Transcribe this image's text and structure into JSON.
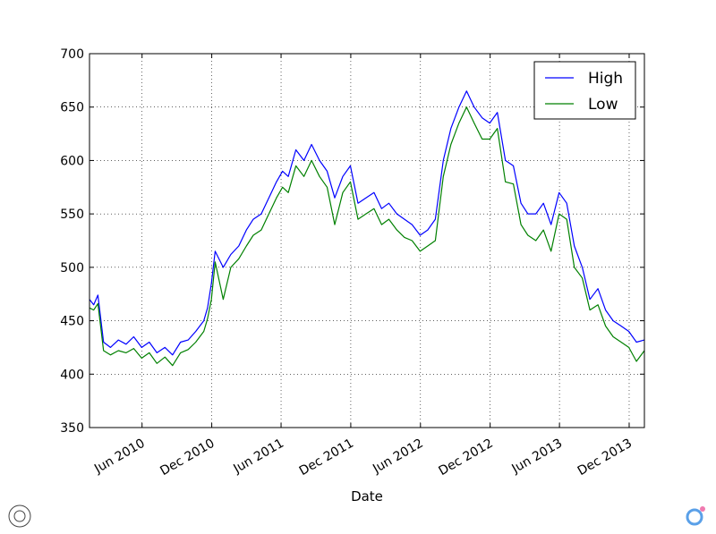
{
  "chart_data": {
    "type": "line",
    "title": "",
    "xlabel": "Date",
    "ylabel": "",
    "ylim": [
      350,
      700
    ],
    "yticks": [
      350,
      400,
      450,
      500,
      550,
      600,
      650,
      700
    ],
    "xlim": [
      "2010-01-14",
      "2014-01-10"
    ],
    "xticks": [
      {
        "date": "2010-06-01",
        "label": "Jun 2010"
      },
      {
        "date": "2010-12-01",
        "label": "Dec 2010"
      },
      {
        "date": "2011-06-01",
        "label": "Jun 2011"
      },
      {
        "date": "2011-12-01",
        "label": "Dec 2011"
      },
      {
        "date": "2012-06-01",
        "label": "Jun 2012"
      },
      {
        "date": "2012-12-01",
        "label": "Dec 2012"
      },
      {
        "date": "2013-06-01",
        "label": "Jun 2013"
      },
      {
        "date": "2013-12-01",
        "label": "Dec 2013"
      }
    ],
    "grid": true,
    "legend_position": "top-right",
    "x": [
      "2010-01-14",
      "2010-01-25",
      "2010-02-05",
      "2010-02-20",
      "2010-03-10",
      "2010-03-31",
      "2010-04-20",
      "2010-05-10",
      "2010-05-31",
      "2010-06-20",
      "2010-07-10",
      "2010-07-31",
      "2010-08-20",
      "2010-09-10",
      "2010-09-30",
      "2010-10-20",
      "2010-11-10",
      "2010-11-20",
      "2010-11-30",
      "2010-12-10",
      "2010-12-31",
      "2011-01-20",
      "2011-02-10",
      "2011-03-02",
      "2011-03-20",
      "2011-04-10",
      "2011-04-30",
      "2011-05-20",
      "2011-06-05",
      "2011-06-20",
      "2011-07-10",
      "2011-07-31",
      "2011-08-20",
      "2011-09-10",
      "2011-09-30",
      "2011-10-20",
      "2011-11-10",
      "2011-11-30",
      "2011-12-20",
      "2012-01-10",
      "2012-01-31",
      "2012-02-20",
      "2012-03-10",
      "2012-03-31",
      "2012-04-20",
      "2012-05-10",
      "2012-05-31",
      "2012-06-20",
      "2012-07-10",
      "2012-07-31",
      "2012-08-20",
      "2012-09-10",
      "2012-09-30",
      "2012-10-20",
      "2012-11-10",
      "2012-11-30",
      "2012-12-20",
      "2013-01-10",
      "2013-01-31",
      "2013-02-20",
      "2013-03-10",
      "2013-03-31",
      "2013-04-20",
      "2013-05-10",
      "2013-05-31",
      "2013-06-20",
      "2013-07-10",
      "2013-07-31",
      "2013-08-20",
      "2013-09-10",
      "2013-09-30",
      "2013-10-20",
      "2013-11-10",
      "2013-11-30",
      "2013-12-20",
      "2014-01-10"
    ],
    "series": [
      {
        "name": "High",
        "color": "#0000ff",
        "values": [
          470,
          465,
          474,
          430,
          425,
          432,
          428,
          435,
          425,
          430,
          420,
          425,
          418,
          430,
          432,
          440,
          450,
          462,
          485,
          515,
          500,
          512,
          520,
          535,
          545,
          550,
          565,
          580,
          590,
          585,
          610,
          600,
          615,
          600,
          590,
          565,
          585,
          595,
          560,
          565,
          570,
          555,
          560,
          550,
          545,
          540,
          530,
          535,
          545,
          600,
          630,
          650,
          665,
          650,
          640,
          635,
          645,
          600,
          595,
          560,
          550,
          550,
          560,
          540,
          570,
          560,
          520,
          500,
          470,
          480,
          460,
          450,
          445,
          440,
          430,
          432
        ]
      },
      {
        "name": "Low",
        "color": "#008000",
        "values": [
          462,
          460,
          466,
          422,
          418,
          422,
          420,
          424,
          415,
          420,
          410,
          416,
          408,
          420,
          423,
          430,
          440,
          452,
          470,
          505,
          470,
          500,
          508,
          520,
          530,
          535,
          550,
          565,
          575,
          570,
          595,
          585,
          600,
          585,
          575,
          540,
          570,
          580,
          545,
          550,
          555,
          540,
          545,
          535,
          528,
          525,
          515,
          520,
          525,
          585,
          615,
          635,
          650,
          635,
          620,
          620,
          630,
          580,
          578,
          540,
          530,
          525,
          535,
          515,
          550,
          545,
          500,
          490,
          460,
          465,
          445,
          435,
          430,
          425,
          412,
          422
        ]
      }
    ]
  }
}
